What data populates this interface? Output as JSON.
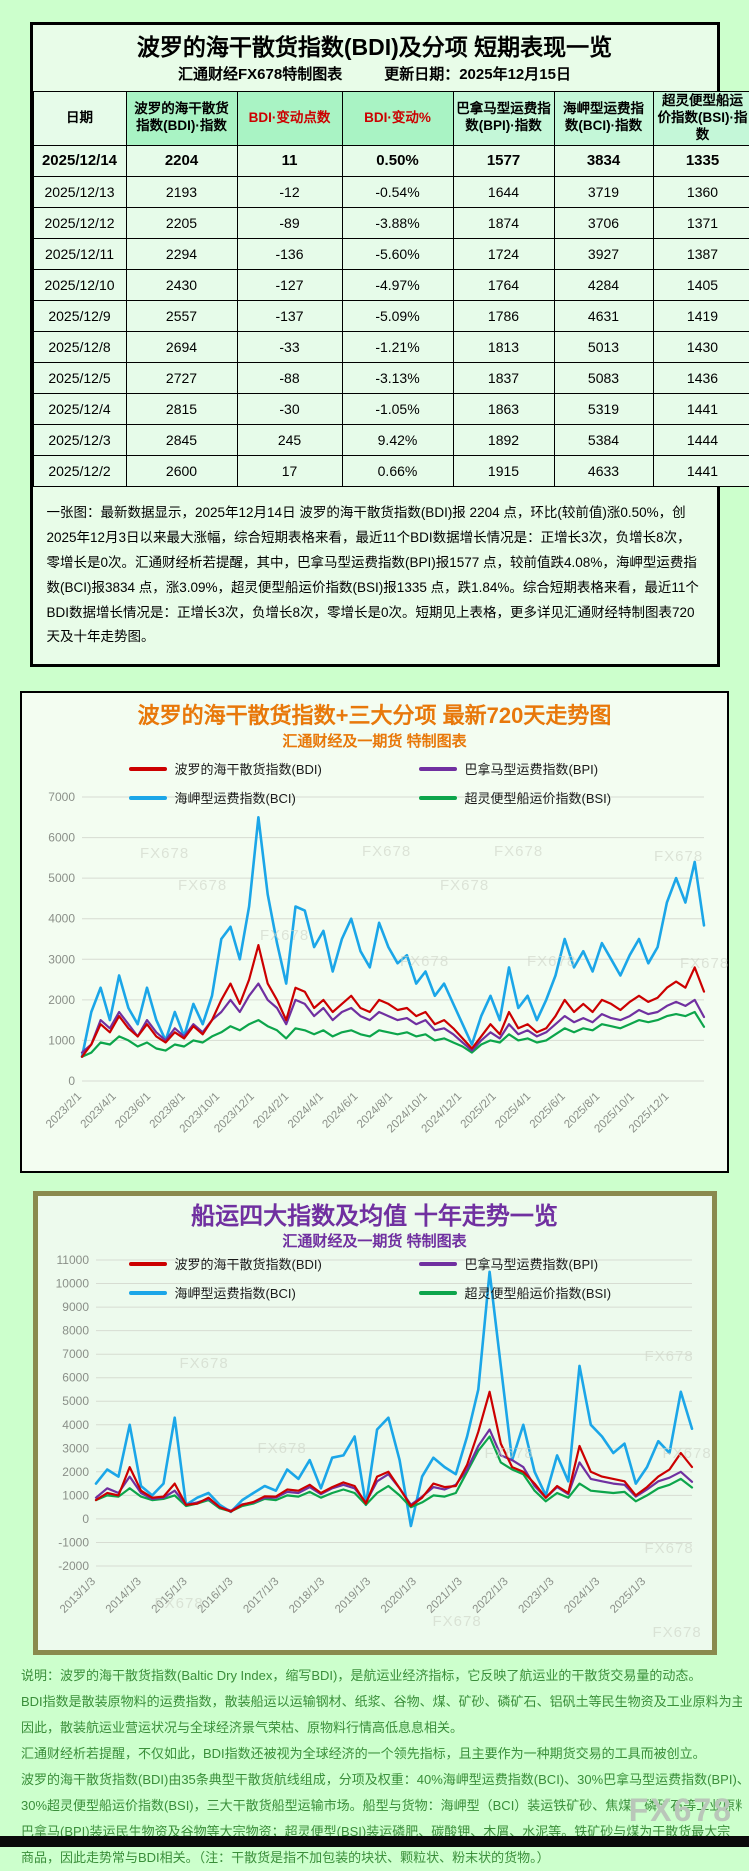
{
  "page": {
    "watermark": "FX678"
  },
  "table_section": {
    "title": "波罗的海干散货指数(BDI)及分项 短期表现一览",
    "subtitle_left": "汇通财经FX678特制图表",
    "subtitle_right": "更新日期：2025年12月15日",
    "headers": [
      "日期",
      "波罗的海干散货指数(BDI)·指数",
      "BDI·变动点数",
      "BDI·变动%",
      "巴拿马型运费指数(BPI)·指数",
      "海岬型运费指数(BCI)·指数",
      "超灵便型船运价指数(BSI)·指数"
    ],
    "rows": [
      [
        "2025/12/14",
        "2204",
        "11",
        "0.50%",
        "1577",
        "3834",
        "1335"
      ],
      [
        "2025/12/13",
        "2193",
        "-12",
        "-0.54%",
        "1644",
        "3719",
        "1360"
      ],
      [
        "2025/12/12",
        "2205",
        "-89",
        "-3.88%",
        "1874",
        "3706",
        "1371"
      ],
      [
        "2025/12/11",
        "2294",
        "-136",
        "-5.60%",
        "1724",
        "3927",
        "1387"
      ],
      [
        "2025/12/10",
        "2430",
        "-127",
        "-4.97%",
        "1764",
        "4284",
        "1405"
      ],
      [
        "2025/12/9",
        "2557",
        "-137",
        "-5.09%",
        "1786",
        "4631",
        "1419"
      ],
      [
        "2025/12/8",
        "2694",
        "-33",
        "-1.21%",
        "1813",
        "5013",
        "1430"
      ],
      [
        "2025/12/5",
        "2727",
        "-88",
        "-3.13%",
        "1837",
        "5083",
        "1436"
      ],
      [
        "2025/12/4",
        "2815",
        "-30",
        "-1.05%",
        "1863",
        "5319",
        "1441"
      ],
      [
        "2025/12/3",
        "2845",
        "245",
        "9.42%",
        "1892",
        "5384",
        "1444"
      ],
      [
        "2025/12/2",
        "2600",
        "17",
        "0.66%",
        "1915",
        "4633",
        "1441"
      ]
    ],
    "note": "一张图：最新数据显示，2025年12月14日 波罗的海干散货指数(BDI)报 2204 点，环比(较前值)涨0.50%，创2025年12月3日以来最大涨幅，综合短期表格来看，最近11个BDI数据增长情况是：正增长3次，负增长8次，零增长是0次。汇通财经析若提醒，其中，巴拿马型运费指数(BPI)报1577 点，较前值跌4.08%，海岬型运费指数(BCI)报3834 点，涨3.09%，超灵便型船运价指数(BSI)报1335 点，跌1.84%。综合短期表格来看，最近11个BDI数据增长情况是：正增长3次，负增长8次，零增长是0次。短期见上表格，更多详见汇通财经特制图表720天及十年走势图。"
  },
  "chart_data": [
    {
      "type": "line",
      "title": "波罗的海干散货指数+三大分项  最新720天走势图",
      "subtitle": "汇通财经及一期货 特制图表",
      "title_color": "#e8780a",
      "grid": true,
      "legend_position": "top",
      "ylim": [
        0,
        7000
      ],
      "ystep": 1000,
      "x_tick_labels": [
        "2023/2/1",
        "2023/4/1",
        "2023/6/1",
        "2023/8/1",
        "2023/10/1",
        "2023/12/1",
        "2024/2/1",
        "2024/4/1",
        "2024/6/1",
        "2024/8/1",
        "2024/10/1",
        "2024/12/1",
        "2025/2/1",
        "2025/4/1",
        "2025/6/1",
        "2025/8/1",
        "2025/10/1",
        "2025/12/1"
      ],
      "series": [
        {
          "name": "波罗的海干散货指数(BDI)",
          "color": "#cc0000",
          "latest": 2204,
          "values": [
            600,
            900,
            1400,
            1200,
            1600,
            1300,
            1100,
            1400,
            1100,
            950,
            1200,
            1050,
            1350,
            1150,
            1500,
            2000,
            2400,
            1900,
            2500,
            3350,
            2400,
            2000,
            1500,
            2300,
            2200,
            1800,
            2000,
            1700,
            1900,
            2100,
            1800,
            1700,
            2000,
            1900,
            1750,
            1800,
            1600,
            1700,
            1400,
            1500,
            1300,
            1050,
            800,
            1100,
            1400,
            1150,
            1700,
            1300,
            1400,
            1200,
            1300,
            1600,
            2000,
            1700,
            1900,
            1700,
            2000,
            1900,
            1750,
            1950,
            2100,
            1950,
            2050,
            2300,
            2450,
            2300,
            2800,
            2204
          ]
        },
        {
          "name": "巴拿马型运费指数(BPI)",
          "color": "#7030a0",
          "latest": 1577,
          "values": [
            700,
            900,
            1500,
            1300,
            1700,
            1400,
            1100,
            1500,
            1200,
            1000,
            1300,
            1100,
            1400,
            1200,
            1500,
            1700,
            2000,
            1700,
            2100,
            2400,
            2000,
            1800,
            1400,
            2000,
            1900,
            1600,
            1800,
            1500,
            1700,
            1800,
            1600,
            1500,
            1700,
            1600,
            1500,
            1550,
            1400,
            1500,
            1250,
            1300,
            1150,
            950,
            750,
            1000,
            1200,
            1050,
            1400,
            1150,
            1250,
            1100,
            1200,
            1400,
            1600,
            1450,
            1550,
            1450,
            1650,
            1550,
            1500,
            1600,
            1750,
            1650,
            1700,
            1850,
            1950,
            1850,
            2000,
            1577
          ]
        },
        {
          "name": "海岬型运费指数(BCI)",
          "color": "#1ba6e8",
          "latest": 3834,
          "values": [
            600,
            1700,
            2300,
            1500,
            2600,
            1800,
            1400,
            2300,
            1500,
            1000,
            1700,
            1100,
            1900,
            1400,
            2100,
            3500,
            3800,
            3000,
            4300,
            6500,
            4600,
            3400,
            2400,
            4300,
            4200,
            3300,
            3700,
            2700,
            3500,
            4000,
            3200,
            2800,
            3900,
            3300,
            2900,
            3100,
            2400,
            2700,
            2100,
            2400,
            1900,
            1400,
            900,
            1600,
            2100,
            1500,
            2800,
            1800,
            2100,
            1500,
            2000,
            2600,
            3500,
            2800,
            3200,
            2700,
            3400,
            3000,
            2600,
            3100,
            3500,
            2900,
            3300,
            4400,
            5000,
            4400,
            5400,
            3834
          ]
        },
        {
          "name": "超灵便型船运价指数(BSI)",
          "color": "#0ca54b",
          "latest": 1335,
          "values": [
            600,
            700,
            950,
            900,
            1100,
            1000,
            850,
            950,
            800,
            750,
            900,
            850,
            1000,
            950,
            1100,
            1200,
            1350,
            1250,
            1400,
            1500,
            1350,
            1250,
            1050,
            1300,
            1250,
            1150,
            1250,
            1100,
            1200,
            1250,
            1150,
            1100,
            1250,
            1200,
            1150,
            1200,
            1100,
            1150,
            1000,
            1050,
            950,
            850,
            700,
            900,
            1000,
            950,
            1150,
            1000,
            1050,
            950,
            1000,
            1150,
            1300,
            1200,
            1300,
            1250,
            1400,
            1350,
            1300,
            1400,
            1500,
            1450,
            1500,
            1600,
            1650,
            1600,
            1700,
            1335
          ]
        }
      ]
    },
    {
      "type": "line",
      "title": "船运四大指数及均值 十年走势一览",
      "subtitle": "汇通财经及一期货 特制图表",
      "title_color": "#7030a0",
      "grid": true,
      "legend_position": "top",
      "ylim": [
        -2000,
        11000
      ],
      "ystep": 1000,
      "x_tick_labels": [
        "2013/1/3",
        "2014/1/3",
        "2015/1/3",
        "2016/1/3",
        "2017/1/3",
        "2018/1/3",
        "2019/1/3",
        "2020/1/3",
        "2021/1/3",
        "2022/1/3",
        "2023/1/3",
        "2024/1/3",
        "2025/1/3"
      ],
      "series": [
        {
          "name": "波罗的海干散货指数(BDI)",
          "color": "#cc0000",
          "latest": 2204,
          "values": [
            800,
            1100,
            1000,
            2200,
            1200,
            900,
            950,
            1500,
            600,
            650,
            900,
            500,
            310,
            600,
            720,
            960,
            950,
            1250,
            1200,
            1450,
            1100,
            1350,
            1550,
            1400,
            650,
            1800,
            2000,
            1300,
            550,
            900,
            1500,
            1350,
            1400,
            2300,
            3700,
            5400,
            3200,
            2200,
            2000,
            1500,
            900,
            1400,
            1100,
            3100,
            2000,
            1800,
            1700,
            1600,
            1000,
            1350,
            1800,
            2100,
            2800,
            2204
          ]
        },
        {
          "name": "巴拿马型运费指数(BPI)",
          "color": "#7030a0",
          "latest": 1577,
          "values": [
            900,
            1300,
            1100,
            1800,
            1100,
            850,
            900,
            1200,
            600,
            700,
            850,
            500,
            350,
            620,
            700,
            900,
            900,
            1150,
            1100,
            1350,
            1050,
            1300,
            1450,
            1300,
            700,
            1600,
            1900,
            1300,
            600,
            950,
            1350,
            1250,
            1450,
            2100,
            3100,
            3800,
            2700,
            2500,
            2200,
            1400,
            900,
            1350,
            1050,
            2400,
            1700,
            1600,
            1500,
            1450,
            950,
            1250,
            1600,
            1750,
            2000,
            1577
          ]
        },
        {
          "name": "海岬型运费指数(BCI)",
          "color": "#1ba6e8",
          "latest": 3834,
          "values": [
            1500,
            2100,
            1800,
            4000,
            1400,
            1000,
            1500,
            4300,
            600,
            900,
            1100,
            600,
            300,
            800,
            1100,
            1400,
            1200,
            2100,
            1700,
            2500,
            1300,
            2600,
            2700,
            3500,
            600,
            3800,
            4300,
            2500,
            -300,
            1800,
            2600,
            2200,
            1900,
            3500,
            5500,
            10500,
            6500,
            2500,
            4000,
            2000,
            1000,
            2700,
            1600,
            6500,
            4000,
            3500,
            2800,
            3200,
            1500,
            2200,
            3300,
            2800,
            5400,
            3834
          ]
        },
        {
          "name": "超灵便型船运价指数(BSI)",
          "color": "#0ca54b",
          "latest": 1335,
          "values": [
            800,
            1000,
            950,
            1300,
            950,
            800,
            850,
            1000,
            550,
            650,
            800,
            450,
            320,
            550,
            650,
            850,
            800,
            1000,
            950,
            1150,
            900,
            1100,
            1250,
            1100,
            600,
            1100,
            1400,
            1000,
            500,
            700,
            1000,
            950,
            1100,
            2000,
            2900,
            3500,
            2400,
            2100,
            1900,
            1200,
            750,
            1100,
            900,
            1500,
            1200,
            1150,
            1100,
            1150,
            750,
            1000,
            1300,
            1450,
            1700,
            1335
          ]
        }
      ]
    }
  ],
  "description": {
    "lines": [
      "说明：波罗的海干散货指数(Baltic Dry Index，缩写BDI)，是航运业经济指标，它反映了航运业的干散货交易量的动态。",
      "BDI指数是散装原物料的运费指数，散装船运以运输钢材、纸浆、谷物、煤、矿砂、磷矿石、铝矾土等民生物资及工业原料为主。",
      "因此，散装航运业营运状况与全球经济景气荣枯、原物料行情高低息息相关。",
      "汇通财经析若提醒，不仅如此，BDI指数还被视为全球经济的一个领先指标，且主要作为一种期货交易的工具而被创立。",
      "波罗的海干散货指数(BDI)由35条典型干散货航线组成，分项及权重：40%海岬型运费指数(BCI)、30%巴拿马型运费指数(BPI)、",
      "30%超灵便型船运价指数(BSI)，三大干散货船型运输市场。船型与货物：海岬型（BCI）装运铁矿砂、焦煤、磷矿石等工业原料；",
      "巴拿马(BPI)装运民生物资及谷物等大宗物资；超灵便型(BSI)装运磷肥、碳酸钾、木屑、水泥等。铁矿砂与煤为干散货最大宗",
      "商品，因此走势常与BDI相关。（注：干散货是指不加包装的块状、颗粒状、粉末状的货物。）"
    ]
  }
}
